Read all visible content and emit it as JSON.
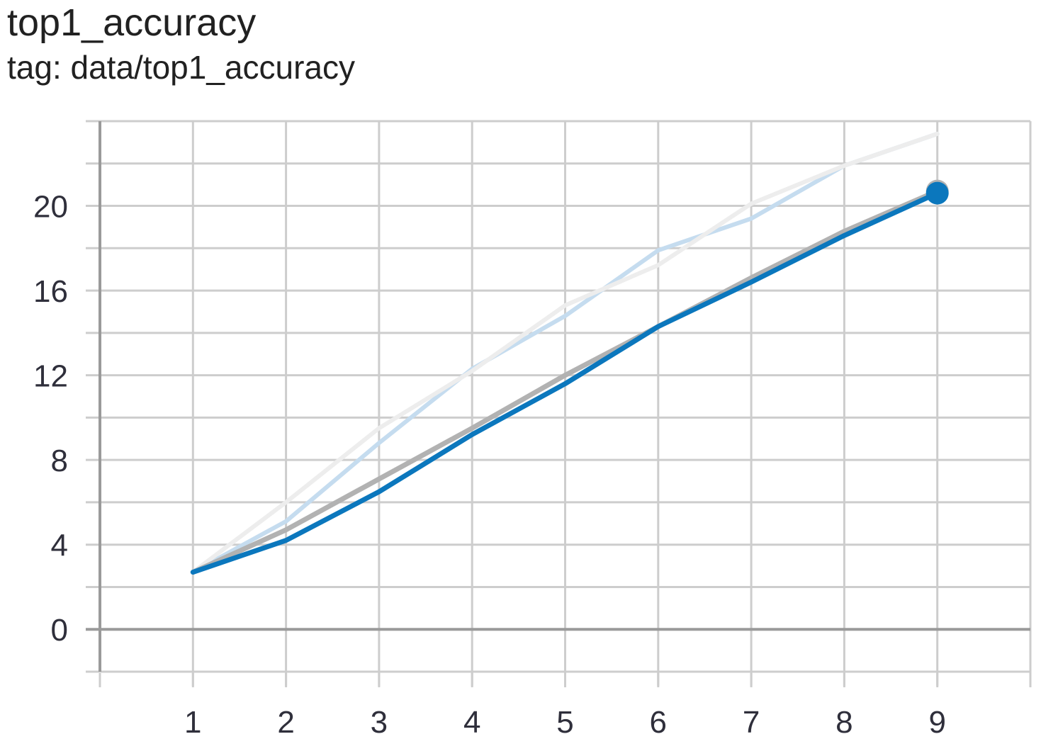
{
  "card": {
    "title": "top1_accuracy",
    "tag": "tag: data/top1_accuracy"
  },
  "chart_data": {
    "type": "line",
    "title": "top1_accuracy",
    "subtitle": "tag: data/top1_accuracy",
    "xlabel": "",
    "ylabel": "",
    "xlim": [
      0,
      10
    ],
    "ylim": [
      -2,
      24
    ],
    "x_ticks": [
      1,
      2,
      3,
      4,
      5,
      6,
      7,
      8,
      9
    ],
    "y_ticks": [
      0,
      4,
      8,
      12,
      16,
      20
    ],
    "grid": true,
    "legend": "none",
    "series": [
      {
        "role": "raw",
        "color": "#c5dcef",
        "x": [
          1,
          2,
          3,
          4,
          5,
          6,
          7,
          8,
          9
        ],
        "y": [
          2.7,
          5.1,
          8.8,
          12.3,
          14.8,
          17.9,
          19.4,
          21.9,
          23.4
        ]
      },
      {
        "role": "raw",
        "color": "#ededed",
        "x": [
          1,
          2,
          3,
          4,
          5,
          6,
          7,
          8,
          9
        ],
        "y": [
          2.7,
          6.0,
          9.5,
          12.2,
          15.3,
          17.2,
          20.1,
          21.9,
          23.4
        ]
      },
      {
        "role": "smoothed",
        "color": "#b2b2b2",
        "x": [
          1,
          2,
          3,
          4,
          5,
          6,
          7,
          8,
          9
        ],
        "y": [
          2.7,
          4.7,
          7.1,
          9.5,
          12.0,
          14.3,
          16.6,
          18.8,
          20.7
        ]
      },
      {
        "role": "smoothed",
        "color": "#0b77bd",
        "x": [
          1,
          2,
          3,
          4,
          5,
          6,
          7,
          8,
          9
        ],
        "y": [
          2.7,
          4.2,
          6.5,
          9.2,
          11.6,
          14.3,
          16.4,
          18.6,
          20.6
        ]
      }
    ]
  }
}
